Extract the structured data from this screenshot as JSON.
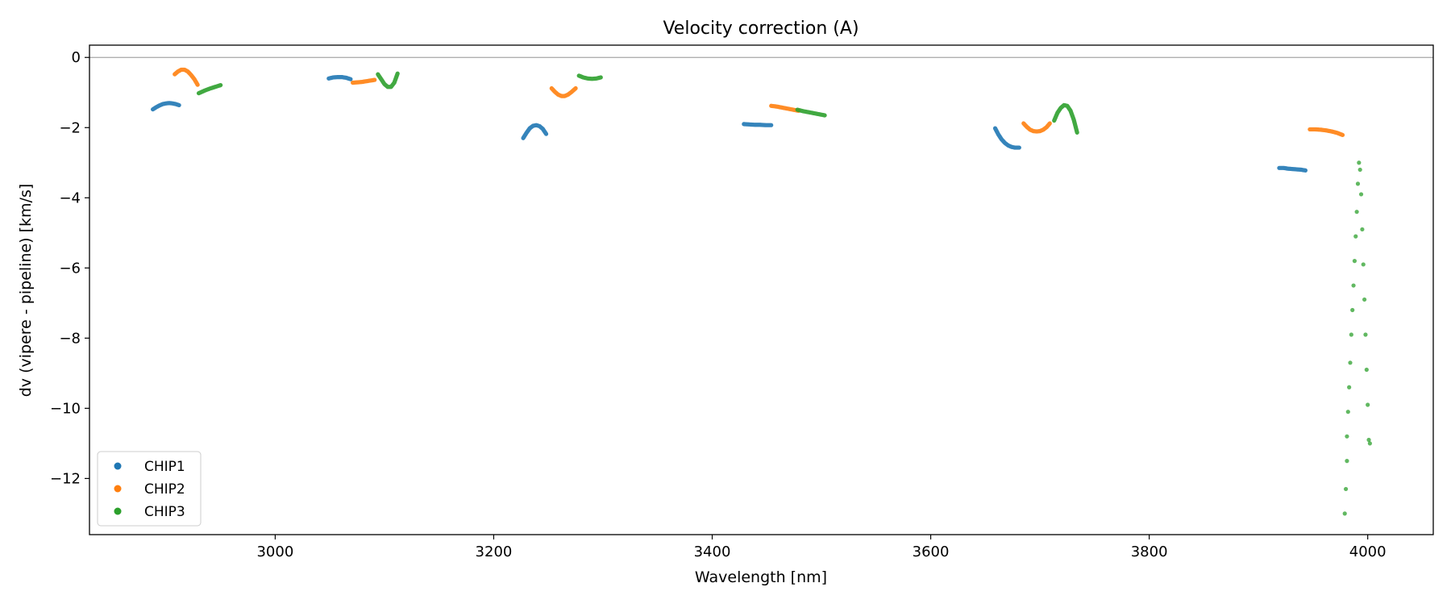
{
  "chart_data": {
    "type": "scatter",
    "title": "Velocity correction (A)",
    "xlabel": "Wavelength [nm]",
    "ylabel": "dv (vipere - pipeline) [km/s]",
    "xlim": [
      2830,
      4060
    ],
    "ylim": [
      -13.6,
      0.35
    ],
    "x_ticks": [
      3000,
      3200,
      3400,
      3600,
      3800,
      4000
    ],
    "x_tick_labels": [
      "3000",
      "3200",
      "3400",
      "3600",
      "3800",
      "4000"
    ],
    "y_ticks": [
      0,
      -2,
      -4,
      -6,
      -8,
      -10,
      -12
    ],
    "y_tick_labels": [
      "0",
      "−2",
      "−4",
      "−6",
      "−8",
      "−10",
      "−12"
    ],
    "reference_line_y": 0,
    "legend_position": "lower-left",
    "grid": false,
    "series": [
      {
        "name": "CHIP1",
        "color": "#1f77b4",
        "segments": [
          {
            "x": [
              2888,
              2891,
              2894,
              2897,
              2900,
              2903,
              2906,
              2909,
              2912
            ],
            "y": [
              -1.48,
              -1.42,
              -1.37,
              -1.33,
              -1.31,
              -1.3,
              -1.31,
              -1.33,
              -1.36
            ]
          },
          {
            "x": [
              3049,
              3053,
              3057,
              3061,
              3065,
              3069
            ],
            "y": [
              -0.6,
              -0.57,
              -0.56,
              -0.56,
              -0.58,
              -0.62
            ]
          },
          {
            "x": [
              3227,
              3230,
              3233,
              3236,
              3239,
              3242,
              3245,
              3248
            ],
            "y": [
              -2.3,
              -2.15,
              -2.02,
              -1.95,
              -1.93,
              -1.96,
              -2.04,
              -2.18
            ]
          },
          {
            "x": [
              3429,
              3434,
              3439,
              3444,
              3449,
              3454
            ],
            "y": [
              -1.9,
              -1.91,
              -1.92,
              -1.92,
              -1.93,
              -1.93
            ]
          },
          {
            "x": [
              3659,
              3662,
              3665,
              3668,
              3671,
              3674,
              3677,
              3681
            ],
            "y": [
              -2.02,
              -2.2,
              -2.34,
              -2.44,
              -2.51,
              -2.55,
              -2.57,
              -2.57
            ]
          },
          {
            "x": [
              3919,
              3923,
              3927,
              3931,
              3935,
              3939,
              3943
            ],
            "y": [
              -3.15,
              -3.15,
              -3.17,
              -3.18,
              -3.19,
              -3.2,
              -3.22
            ]
          }
        ]
      },
      {
        "name": "CHIP2",
        "color": "#ff7f0e",
        "segments": [
          {
            "x": [
              2908,
              2911,
              2914,
              2917,
              2920,
              2923,
              2926,
              2929
            ],
            "y": [
              -0.48,
              -0.4,
              -0.35,
              -0.35,
              -0.4,
              -0.5,
              -0.62,
              -0.78
            ]
          },
          {
            "x": [
              3071,
              3075,
              3079,
              3083,
              3087,
              3091
            ],
            "y": [
              -0.72,
              -0.71,
              -0.7,
              -0.68,
              -0.66,
              -0.64
            ]
          },
          {
            "x": [
              3253,
              3256,
              3259,
              3262,
              3265,
              3268,
              3271,
              3275
            ],
            "y": [
              -0.88,
              -0.98,
              -1.06,
              -1.1,
              -1.1,
              -1.06,
              -0.99,
              -0.88
            ]
          },
          {
            "x": [
              3454,
              3459,
              3464,
              3469,
              3474,
              3479
            ],
            "y": [
              -1.38,
              -1.4,
              -1.43,
              -1.46,
              -1.49,
              -1.52
            ]
          },
          {
            "x": [
              3685,
              3688,
              3691,
              3694,
              3697,
              3700,
              3703,
              3706,
              3709
            ],
            "y": [
              -1.88,
              -1.98,
              -2.06,
              -2.1,
              -2.11,
              -2.1,
              -2.06,
              -1.99,
              -1.88
            ]
          },
          {
            "x": [
              3947,
              3952,
              3957,
              3962,
              3967,
              3972,
              3977
            ],
            "y": [
              -2.05,
              -2.05,
              -2.06,
              -2.08,
              -2.11,
              -2.15,
              -2.21
            ]
          }
        ]
      },
      {
        "name": "CHIP3",
        "color": "#2ca02c",
        "segments": [
          {
            "x": [
              2930,
              2935,
              2940,
              2945,
              2950
            ],
            "y": [
              -1.02,
              -0.95,
              -0.89,
              -0.84,
              -0.79
            ]
          },
          {
            "x": [
              3094,
              3097,
              3100,
              3103,
              3106,
              3109,
              3112
            ],
            "y": [
              -0.48,
              -0.62,
              -0.76,
              -0.84,
              -0.84,
              -0.72,
              -0.46
            ]
          },
          {
            "x": [
              3278,
              3282,
              3286,
              3290,
              3294,
              3298
            ],
            "y": [
              -0.52,
              -0.57,
              -0.6,
              -0.61,
              -0.6,
              -0.57
            ]
          },
          {
            "x": [
              3478,
              3483,
              3488,
              3493,
              3498,
              3503
            ],
            "y": [
              -1.49,
              -1.53,
              -1.56,
              -1.59,
              -1.62,
              -1.65
            ]
          },
          {
            "x": [
              3713,
              3716,
              3719,
              3722,
              3725,
              3728,
              3731,
              3734
            ],
            "y": [
              -1.8,
              -1.58,
              -1.44,
              -1.36,
              -1.38,
              -1.52,
              -1.78,
              -2.14
            ]
          },
          {
            "dotted": true,
            "x": [
              3979,
              3980,
              3981,
              3981,
              3982,
              3983,
              3984,
              3985,
              3986,
              3987,
              3988,
              3989,
              3990,
              3991,
              3992,
              3993,
              3994,
              3995,
              3996,
              3997,
              3998,
              3999,
              4000,
              4001,
              4002
            ],
            "y": [
              -13.0,
              -12.3,
              -11.5,
              -10.8,
              -10.1,
              -9.4,
              -8.7,
              -7.9,
              -7.2,
              -6.5,
              -5.8,
              -5.1,
              -4.4,
              -3.6,
              -3.0,
              -3.2,
              -3.9,
              -4.9,
              -5.9,
              -6.9,
              -7.9,
              -8.9,
              -9.9,
              -10.9,
              -11.0
            ]
          }
        ]
      }
    ]
  }
}
